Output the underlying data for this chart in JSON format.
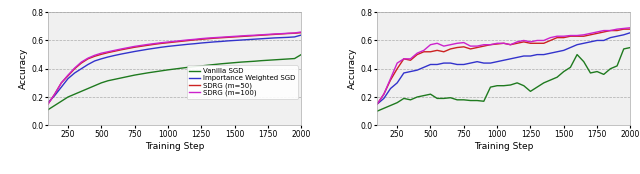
{
  "xlabel": "Training Step",
  "ylabel": "Accuracy",
  "xlim": [
    100,
    2000
  ],
  "ylim": [
    0.0,
    0.8
  ],
  "yticks": [
    0.0,
    0.2,
    0.4,
    0.6,
    0.8
  ],
  "xticks": [
    250,
    500,
    750,
    1000,
    1250,
    1500,
    1750,
    2000
  ],
  "colors": {
    "vanilla": "#1f7a1f",
    "iw": "#3333cc",
    "sdrg50": "#cc2222",
    "sdrg100": "#cc22cc"
  },
  "legend_labels": [
    "Vanilla SGD",
    "Importance Weighted SGD",
    "SDRG (m=50)",
    "SDRG (m=100)"
  ],
  "steps_a": [
    100,
    150,
    200,
    250,
    300,
    350,
    400,
    450,
    500,
    550,
    600,
    650,
    700,
    750,
    800,
    850,
    900,
    950,
    1000,
    1050,
    1100,
    1150,
    1200,
    1250,
    1300,
    1350,
    1400,
    1450,
    1500,
    1550,
    1600,
    1650,
    1700,
    1750,
    1800,
    1850,
    1900,
    1950,
    2000
  ],
  "vanilla_a": [
    0.11,
    0.14,
    0.17,
    0.2,
    0.22,
    0.24,
    0.26,
    0.28,
    0.3,
    0.315,
    0.325,
    0.335,
    0.345,
    0.355,
    0.363,
    0.371,
    0.378,
    0.385,
    0.392,
    0.398,
    0.404,
    0.41,
    0.415,
    0.42,
    0.425,
    0.43,
    0.435,
    0.439,
    0.443,
    0.447,
    0.45,
    0.453,
    0.457,
    0.46,
    0.463,
    0.466,
    0.469,
    0.472,
    0.5
  ],
  "iw_a": [
    0.16,
    0.21,
    0.27,
    0.33,
    0.37,
    0.4,
    0.43,
    0.455,
    0.47,
    0.483,
    0.494,
    0.504,
    0.513,
    0.522,
    0.53,
    0.538,
    0.545,
    0.552,
    0.558,
    0.563,
    0.568,
    0.573,
    0.577,
    0.582,
    0.586,
    0.59,
    0.593,
    0.597,
    0.6,
    0.603,
    0.606,
    0.609,
    0.612,
    0.615,
    0.618,
    0.62,
    0.622,
    0.625,
    0.638
  ],
  "sdrg50_a": [
    0.15,
    0.22,
    0.3,
    0.35,
    0.4,
    0.44,
    0.47,
    0.488,
    0.502,
    0.514,
    0.524,
    0.534,
    0.543,
    0.552,
    0.559,
    0.566,
    0.573,
    0.579,
    0.584,
    0.589,
    0.594,
    0.599,
    0.604,
    0.608,
    0.612,
    0.616,
    0.619,
    0.622,
    0.625,
    0.628,
    0.631,
    0.634,
    0.637,
    0.64,
    0.643,
    0.646,
    0.649,
    0.651,
    0.655
  ],
  "sdrg100_a": [
    0.15,
    0.22,
    0.3,
    0.355,
    0.405,
    0.447,
    0.475,
    0.495,
    0.51,
    0.52,
    0.53,
    0.54,
    0.549,
    0.558,
    0.565,
    0.572,
    0.578,
    0.584,
    0.589,
    0.594,
    0.599,
    0.604,
    0.608,
    0.613,
    0.617,
    0.62,
    0.623,
    0.626,
    0.629,
    0.632,
    0.635,
    0.637,
    0.64,
    0.643,
    0.646,
    0.648,
    0.651,
    0.653,
    0.66
  ],
  "steps_b": [
    100,
    150,
    200,
    250,
    300,
    350,
    400,
    450,
    500,
    550,
    600,
    650,
    700,
    750,
    800,
    850,
    900,
    950,
    1000,
    1050,
    1100,
    1150,
    1200,
    1250,
    1300,
    1350,
    1400,
    1450,
    1500,
    1550,
    1600,
    1650,
    1700,
    1750,
    1800,
    1850,
    1900,
    1950,
    2000
  ],
  "vanilla_b": [
    0.1,
    0.12,
    0.14,
    0.16,
    0.19,
    0.18,
    0.2,
    0.21,
    0.22,
    0.19,
    0.19,
    0.195,
    0.18,
    0.18,
    0.175,
    0.175,
    0.17,
    0.27,
    0.28,
    0.28,
    0.285,
    0.3,
    0.28,
    0.24,
    0.27,
    0.3,
    0.32,
    0.34,
    0.38,
    0.41,
    0.5,
    0.45,
    0.37,
    0.38,
    0.36,
    0.4,
    0.42,
    0.54,
    0.55
  ],
  "iw_b": [
    0.15,
    0.19,
    0.26,
    0.3,
    0.37,
    0.38,
    0.39,
    0.41,
    0.43,
    0.43,
    0.44,
    0.44,
    0.43,
    0.43,
    0.44,
    0.45,
    0.44,
    0.44,
    0.45,
    0.46,
    0.47,
    0.48,
    0.49,
    0.49,
    0.5,
    0.5,
    0.51,
    0.52,
    0.53,
    0.55,
    0.57,
    0.58,
    0.59,
    0.6,
    0.6,
    0.62,
    0.63,
    0.64,
    0.655
  ],
  "sdrg50_b": [
    0.15,
    0.22,
    0.32,
    0.4,
    0.47,
    0.46,
    0.5,
    0.52,
    0.52,
    0.53,
    0.52,
    0.54,
    0.55,
    0.555,
    0.54,
    0.55,
    0.56,
    0.57,
    0.575,
    0.58,
    0.57,
    0.58,
    0.59,
    0.58,
    0.58,
    0.58,
    0.6,
    0.62,
    0.62,
    0.63,
    0.63,
    0.63,
    0.64,
    0.65,
    0.66,
    0.67,
    0.67,
    0.68,
    0.68
  ],
  "sdrg100_b": [
    0.15,
    0.22,
    0.33,
    0.44,
    0.47,
    0.47,
    0.51,
    0.53,
    0.57,
    0.58,
    0.56,
    0.57,
    0.58,
    0.585,
    0.56,
    0.56,
    0.57,
    0.57,
    0.58,
    0.58,
    0.57,
    0.59,
    0.6,
    0.59,
    0.6,
    0.6,
    0.62,
    0.63,
    0.63,
    0.635,
    0.635,
    0.64,
    0.65,
    0.66,
    0.67,
    0.67,
    0.68,
    0.685,
    0.69
  ],
  "bg_color": "#f0f0f0",
  "fig_bg_color": "#ffffff"
}
